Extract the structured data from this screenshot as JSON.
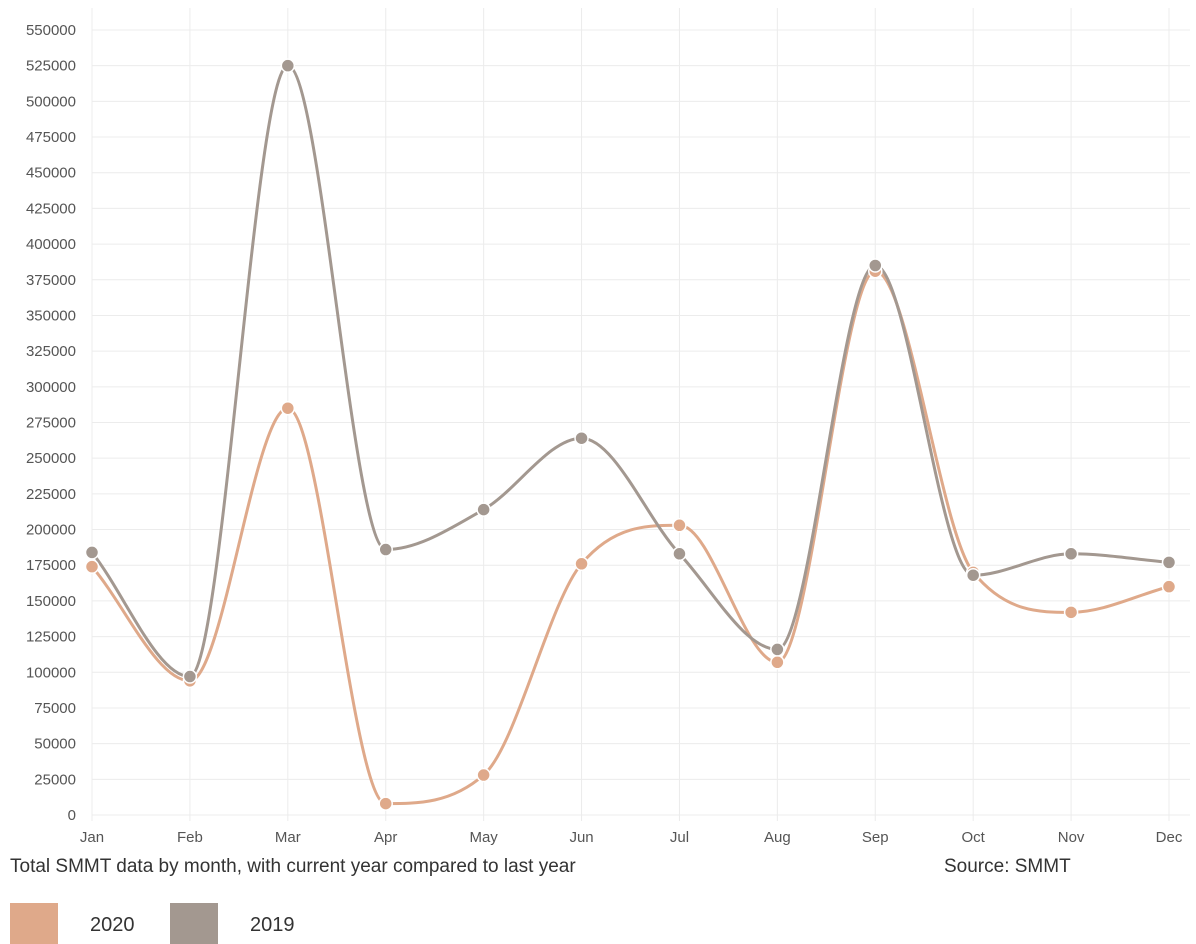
{
  "caption": {
    "description": "Total SMMT data by month, with current year compared to last year",
    "source": "Source: SMMT"
  },
  "chart_data": {
    "type": "line",
    "smooth": true,
    "title": "",
    "xlabel": "",
    "ylabel": "",
    "categories": [
      "Jan",
      "Feb",
      "Mar",
      "Apr",
      "May",
      "Jun",
      "Jul",
      "Aug",
      "Sep",
      "Oct",
      "Nov",
      "Dec"
    ],
    "ylim": [
      0,
      550000
    ],
    "yticks": [
      0,
      25000,
      50000,
      75000,
      100000,
      125000,
      150000,
      175000,
      200000,
      225000,
      250000,
      275000,
      300000,
      325000,
      350000,
      375000,
      400000,
      425000,
      450000,
      475000,
      500000,
      525000,
      550000
    ],
    "grid": true,
    "legend_position": "bottom-left",
    "series": [
      {
        "name": "2020",
        "color": "#dfa98a",
        "values": [
          174000,
          94000,
          285000,
          8000,
          28000,
          176000,
          203000,
          107000,
          381000,
          170000,
          142000,
          160000
        ]
      },
      {
        "name": "2019",
        "color": "#a39890",
        "values": [
          184000,
          97000,
          525000,
          186000,
          214000,
          264000,
          183000,
          116000,
          385000,
          168000,
          183000,
          177000
        ]
      }
    ]
  }
}
